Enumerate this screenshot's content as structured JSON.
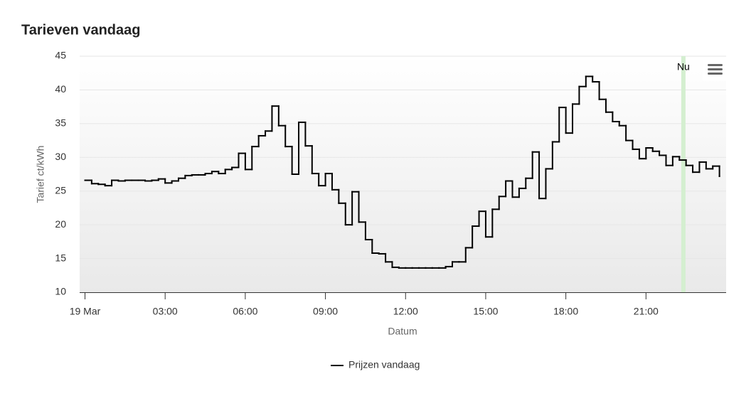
{
  "chart_data": {
    "type": "step-line",
    "title": "Tarieven vandaag",
    "x_label": "Datum",
    "y_label": "Tarief ct/kWh",
    "x": [
      0,
      0.25,
      0.5,
      0.75,
      1,
      1.25,
      1.5,
      1.75,
      2,
      2.25,
      2.5,
      2.75,
      3,
      3.25,
      3.5,
      3.75,
      4,
      4.25,
      4.5,
      4.75,
      5,
      5.25,
      5.5,
      5.75,
      6,
      6.25,
      6.5,
      6.75,
      7,
      7.25,
      7.5,
      7.75,
      8,
      8.25,
      8.5,
      8.75,
      9,
      9.25,
      9.5,
      9.75,
      10,
      10.25,
      10.5,
      10.75,
      11,
      11.25,
      11.5,
      11.75,
      12,
      12.25,
      12.5,
      12.75,
      13,
      13.25,
      13.5,
      13.75,
      14,
      14.25,
      14.5,
      14.75,
      15,
      15.25,
      15.5,
      15.75,
      16,
      16.25,
      16.5,
      16.75,
      17,
      17.25,
      17.5,
      17.75,
      18,
      18.25,
      18.5,
      18.75,
      19,
      19.25,
      19.5,
      19.75,
      20,
      20.25,
      20.5,
      20.75,
      21,
      21.25,
      21.5,
      21.75,
      22,
      22.25,
      22.5,
      22.75,
      23,
      23.25,
      23.5,
      23.75
    ],
    "series": [
      {
        "name": "Prijzen vandaag",
        "color": "#000000",
        "values": [
          26.6,
          26.1,
          26.0,
          25.8,
          26.6,
          26.5,
          26.6,
          26.6,
          26.6,
          26.5,
          26.6,
          26.8,
          26.2,
          26.5,
          26.9,
          27.3,
          27.4,
          27.4,
          27.6,
          27.9,
          27.6,
          28.2,
          28.5,
          30.6,
          28.2,
          31.6,
          33.2,
          33.9,
          37.6,
          34.7,
          31.6,
          27.5,
          35.2,
          31.7,
          27.6,
          25.8,
          27.6,
          25.2,
          23.2,
          20.0,
          24.9,
          20.4,
          17.8,
          15.8,
          15.7,
          14.5,
          13.7,
          13.6,
          13.6,
          13.6,
          13.6,
          13.6,
          13.6,
          13.6,
          13.8,
          14.5,
          14.5,
          16.6,
          19.8,
          22.0,
          18.2,
          22.3,
          24.2,
          26.5,
          24.1,
          25.4,
          26.9,
          30.8,
          23.9,
          28.3,
          32.3,
          37.4,
          33.6,
          37.9,
          40.5,
          42.0,
          41.2,
          38.6,
          36.7,
          35.3,
          34.7,
          32.5,
          31.2,
          29.8,
          31.4,
          30.9,
          30.3,
          28.8,
          30.1,
          29.6,
          28.8,
          27.8,
          29.3,
          28.3,
          28.7,
          27.2
        ]
      }
    ],
    "xlim": [
      -0.2,
      24
    ],
    "xticks": [
      {
        "value": 0,
        "label": "19 Mar"
      },
      {
        "value": 3,
        "label": "03:00"
      },
      {
        "value": 6,
        "label": "06:00"
      },
      {
        "value": 9,
        "label": "09:00"
      },
      {
        "value": 12,
        "label": "12:00"
      },
      {
        "value": 15,
        "label": "15:00"
      },
      {
        "value": 18,
        "label": "18:00"
      },
      {
        "value": 21,
        "label": "21:00"
      }
    ],
    "ylim": [
      10,
      45
    ],
    "yticks": [
      10,
      15,
      20,
      25,
      30,
      35,
      40,
      45
    ],
    "grid": true,
    "now_band": {
      "value": 22.4,
      "label": "Nu",
      "color": "#d4efd0"
    }
  }
}
